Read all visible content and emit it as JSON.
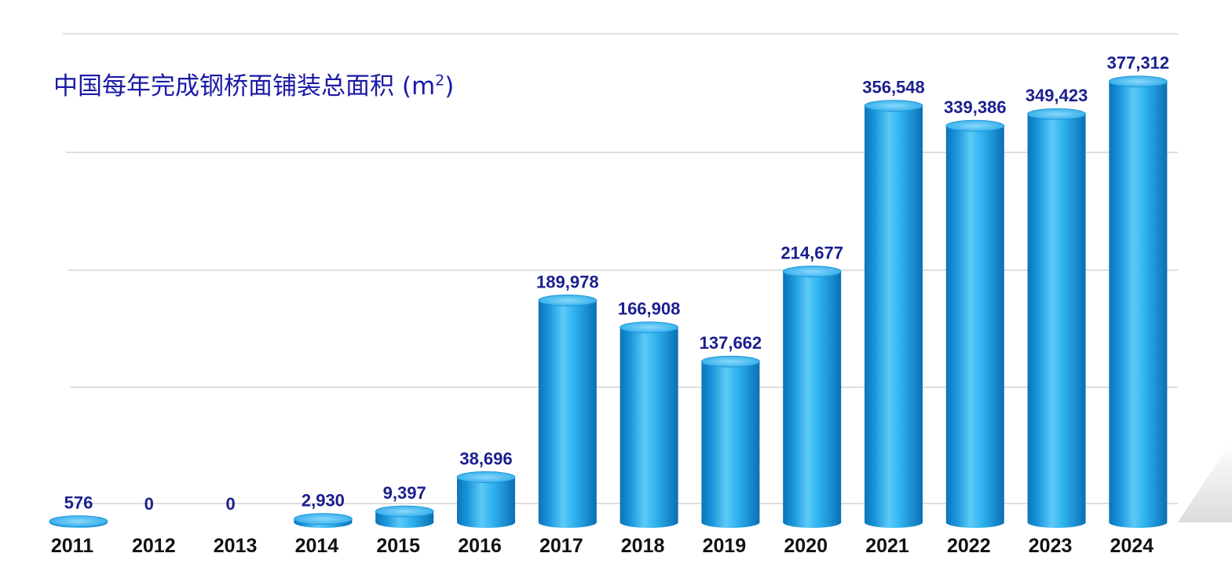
{
  "chart_data": {
    "type": "bar",
    "title_main": "中国每年完成钢桥面铺装总面积 (m",
    "title_sup": "2",
    "title_close": ")",
    "categories": [
      "2011",
      "2012",
      "2013",
      "2014",
      "2015",
      "2016",
      "2017",
      "2018",
      "2019",
      "2020",
      "2021",
      "2022",
      "2023",
      "2024"
    ],
    "values": [
      576,
      0,
      0,
      2930,
      9397,
      38696,
      189978,
      166908,
      137662,
      214677,
      356548,
      339386,
      349423,
      377312
    ],
    "value_labels": [
      "576",
      "0",
      "0",
      "2,930",
      "9,397",
      "38,696",
      "189,978",
      "166,908",
      "137,662",
      "214,677",
      "356,548",
      "339,386",
      "349,423",
      "377,312"
    ],
    "ylim": [
      0,
      400000
    ],
    "grid": true,
    "legend": "none",
    "colors": {
      "bar_main": "#1ea6ea",
      "bar_dark": "#0b74b8",
      "bar_light": "#7fd3fa",
      "bar_top": "#5cc6f5",
      "value_label": "#1b1f8f",
      "category_label": "#111111",
      "title": "#1a1aa6",
      "grid": "#c9c9c9"
    }
  }
}
